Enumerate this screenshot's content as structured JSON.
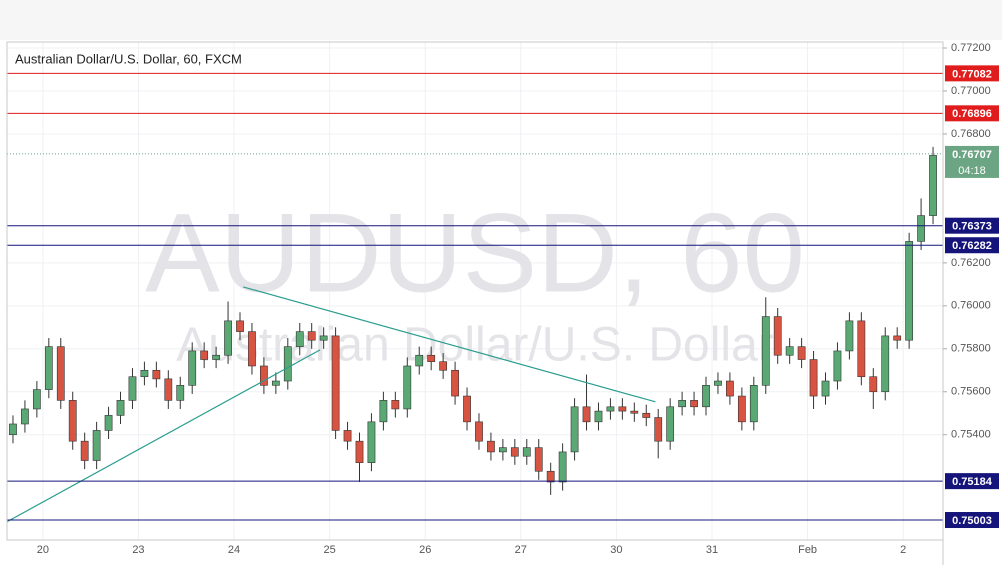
{
  "chart_data": {
    "type": "candlestick",
    "title": "Australian Dollar/U.S. Dollar, 60, FXCM",
    "watermark": "AUDUSD, 60",
    "watermark_subtitle": "Australian Dollar/U.S. Dollar",
    "xlim": [
      0,
      235
    ],
    "xticks": [
      {
        "value": 9,
        "label": "20"
      },
      {
        "value": 33,
        "label": "23"
      },
      {
        "value": 57,
        "label": "24"
      },
      {
        "value": 81,
        "label": "25"
      },
      {
        "value": 105,
        "label": "26"
      },
      {
        "value": 129,
        "label": "27"
      },
      {
        "value": 153,
        "label": "30"
      },
      {
        "value": 177,
        "label": "31"
      },
      {
        "value": 201,
        "label": "Feb"
      },
      {
        "value": 225,
        "label": "2"
      }
    ],
    "ylim": [
      0.7491,
      0.77228
    ],
    "yticks": [
      {
        "value": 0.754,
        "label": "0.75400"
      },
      {
        "value": 0.756,
        "label": "0.75600"
      },
      {
        "value": 0.758,
        "label": "0.75800"
      },
      {
        "value": 0.76,
        "label": "0.76000"
      },
      {
        "value": 0.762,
        "label": "0.76200"
      },
      {
        "value": 0.768,
        "label": "0.76800"
      },
      {
        "value": 0.77,
        "label": "0.77000"
      },
      {
        "value": 0.772,
        "label": "0.77200"
      }
    ],
    "grid": true,
    "up_color": "#5aa874",
    "down_color": "#d75442",
    "x": [
      1.5,
      4.5,
      7.5,
      10.5,
      13.5,
      16.5,
      19.5,
      22.5,
      25.5,
      28.5,
      31.5,
      34.5,
      37.5,
      40.5,
      43.5,
      46.5,
      49.5,
      52.5,
      55.5,
      58.5,
      61.5,
      64.5,
      67.5,
      70.5,
      73.5,
      76.5,
      79.5,
      82.5,
      85.5,
      88.5,
      91.5,
      94.5,
      97.5,
      100.5,
      103.5,
      106.5,
      109.5,
      112.5,
      115.5,
      118.5,
      121.5,
      124.5,
      127.5,
      130.5,
      133.5,
      136.5,
      139.5,
      142.5,
      145.5,
      148.5,
      151.5,
      154.5,
      157.5,
      160.5,
      163.5,
      166.5,
      169.5,
      172.5,
      175.5,
      178.5,
      181.5,
      184.5,
      187.5,
      190.5,
      193.5,
      196.5,
      199.5,
      202.5,
      205.5,
      208.5,
      211.5,
      214.5,
      217.5,
      220.5,
      223.5,
      226.5,
      229.5,
      232.5
    ],
    "open": [
      0.754,
      0.7545,
      0.7552,
      0.7561,
      0.7581,
      0.7556,
      0.7537,
      0.7528,
      0.7542,
      0.7549,
      0.7556,
      0.7567,
      0.757,
      0.7566,
      0.7556,
      0.7563,
      0.7579,
      0.7575,
      0.7577,
      0.7593,
      0.7588,
      0.7572,
      0.7563,
      0.7565,
      0.7581,
      0.7588,
      0.7584,
      0.7586,
      0.7542,
      0.7537,
      0.7527,
      0.7546,
      0.7556,
      0.7552,
      0.7572,
      0.7577,
      0.7574,
      0.757,
      0.7558,
      0.7546,
      0.7537,
      0.7532,
      0.7534,
      0.753,
      0.7534,
      0.7523,
      0.7518,
      0.7532,
      0.7553,
      0.7546,
      0.7551,
      0.7553,
      0.7551,
      0.755,
      0.7548,
      0.7537,
      0.7553,
      0.7556,
      0.7553,
      0.7563,
      0.7565,
      0.7558,
      0.7546,
      0.7563,
      0.7595,
      0.7577,
      0.7581,
      0.7575,
      0.7558,
      0.7565,
      0.7579,
      0.7593,
      0.7567,
      0.756,
      0.7586,
      0.7584,
      0.763,
      0.7642
    ],
    "high": [
      0.7549,
      0.7556,
      0.7565,
      0.7585,
      0.7585,
      0.756,
      0.7541,
      0.7546,
      0.7553,
      0.756,
      0.7571,
      0.7574,
      0.7574,
      0.757,
      0.7567,
      0.7583,
      0.7583,
      0.7581,
      0.7602,
      0.7597,
      0.7592,
      0.7576,
      0.7569,
      0.7585,
      0.7592,
      0.7592,
      0.759,
      0.759,
      0.7546,
      0.7541,
      0.755,
      0.756,
      0.756,
      0.7576,
      0.7581,
      0.7581,
      0.7578,
      0.7574,
      0.7562,
      0.755,
      0.7541,
      0.7538,
      0.7538,
      0.7538,
      0.7538,
      0.7527,
      0.7536,
      0.7557,
      0.7568,
      0.7555,
      0.7557,
      0.7557,
      0.7555,
      0.7554,
      0.7552,
      0.7557,
      0.756,
      0.756,
      0.7567,
      0.7569,
      0.7569,
      0.7562,
      0.7567,
      0.7604,
      0.7599,
      0.7585,
      0.7585,
      0.7579,
      0.7569,
      0.7583,
      0.7597,
      0.7597,
      0.7571,
      0.759,
      0.759,
      0.7634,
      0.765,
      0.7674
    ],
    "low": [
      0.7536,
      0.7541,
      0.7548,
      0.7557,
      0.7552,
      0.7533,
      0.7524,
      0.7524,
      0.7538,
      0.7545,
      0.7552,
      0.7563,
      0.7562,
      0.7552,
      0.7552,
      0.7559,
      0.7571,
      0.7571,
      0.7573,
      0.7584,
      0.7568,
      0.7559,
      0.7559,
      0.7561,
      0.7577,
      0.758,
      0.758,
      0.7538,
      0.7533,
      0.7518,
      0.7523,
      0.7542,
      0.7548,
      0.7548,
      0.7568,
      0.757,
      0.7566,
      0.7554,
      0.7542,
      0.7533,
      0.7528,
      0.7528,
      0.7526,
      0.7526,
      0.7519,
      0.7512,
      0.7514,
      0.7528,
      0.7542,
      0.7542,
      0.7547,
      0.7547,
      0.7546,
      0.7544,
      0.7529,
      0.7533,
      0.7549,
      0.7549,
      0.7549,
      0.7559,
      0.7554,
      0.7542,
      0.7542,
      0.7559,
      0.7573,
      0.7573,
      0.7571,
      0.7552,
      0.7554,
      0.7561,
      0.7575,
      0.7563,
      0.7552,
      0.7556,
      0.758,
      0.758,
      0.7626,
      0.7638
    ],
    "close": [
      0.7545,
      0.7552,
      0.7561,
      0.7581,
      0.7556,
      0.7537,
      0.7528,
      0.7542,
      0.7549,
      0.7556,
      0.7567,
      0.757,
      0.7566,
      0.7556,
      0.7563,
      0.7579,
      0.7575,
      0.7577,
      0.7593,
      0.7588,
      0.7572,
      0.7563,
      0.7565,
      0.7581,
      0.7588,
      0.7584,
      0.7586,
      0.7542,
      0.7537,
      0.7527,
      0.7546,
      0.7556,
      0.7552,
      0.7572,
      0.7577,
      0.7574,
      0.757,
      0.7558,
      0.7546,
      0.7537,
      0.7532,
      0.7534,
      0.753,
      0.7534,
      0.7523,
      0.7518,
      0.7532,
      0.7553,
      0.7546,
      0.7551,
      0.7553,
      0.7551,
      0.755,
      0.7548,
      0.7537,
      0.7553,
      0.7556,
      0.7553,
      0.7563,
      0.7565,
      0.7558,
      0.7546,
      0.7563,
      0.7595,
      0.7577,
      0.7581,
      0.7575,
      0.7558,
      0.7565,
      0.7579,
      0.7593,
      0.7567,
      0.756,
      0.7586,
      0.7584,
      0.763,
      0.7642,
      0.767
    ],
    "levels": [
      {
        "value": 0.77082,
        "color": "#e01c1c"
      },
      {
        "value": 0.76896,
        "color": "#e01c1c"
      },
      {
        "value": 0.76373,
        "color": "#14147a"
      },
      {
        "value": 0.76282,
        "color": "#14147a"
      },
      {
        "value": 0.75184,
        "color": "#14147a"
      },
      {
        "value": 0.75003,
        "color": "#14147a"
      }
    ],
    "last_price": 0.76707,
    "last_price_color": "#6ba583",
    "countdown": "04:18",
    "trendlines": [
      {
        "x": [
          0,
          78.6
        ],
        "y": [
          0.74995,
          0.75795
        ],
        "color": "#2a9d8f"
      },
      {
        "x": [
          59.3,
          162.8
        ],
        "y": [
          0.76088,
          0.75553
        ],
        "color": "#2a9d8f"
      }
    ]
  }
}
